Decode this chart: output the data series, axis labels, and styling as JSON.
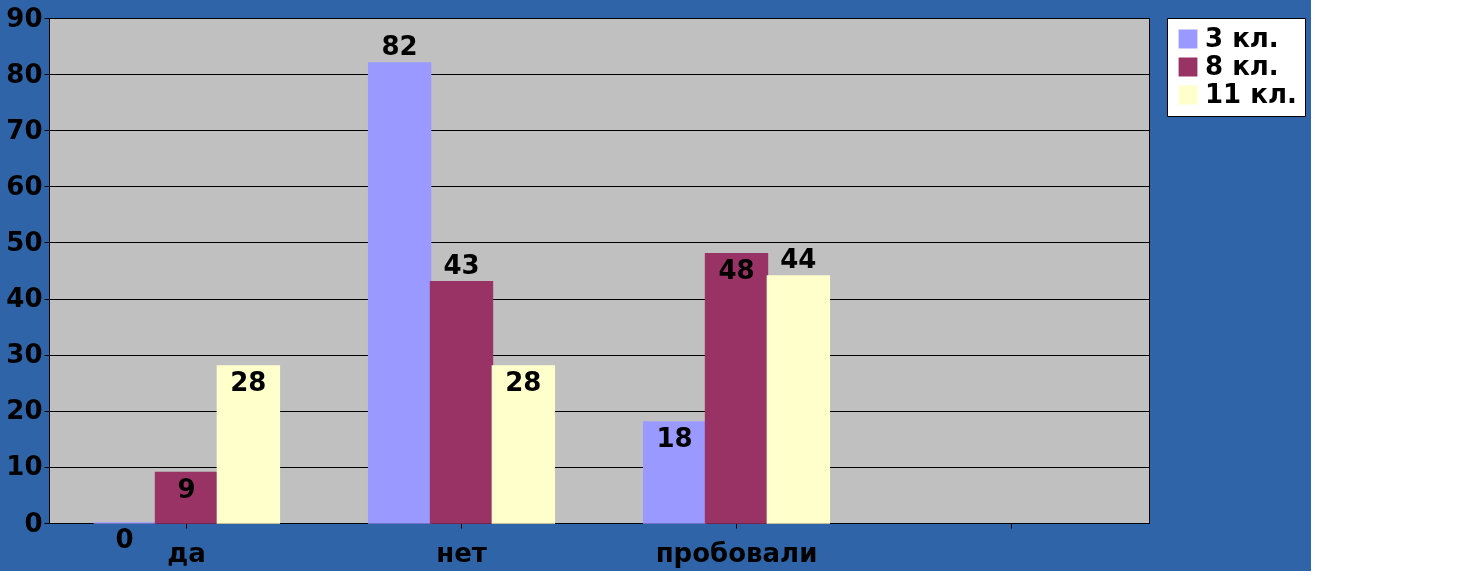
{
  "chart_data": {
    "type": "bar",
    "categories": [
      "да",
      "нет",
      "пробовали",
      null
    ],
    "series": [
      {
        "name": "3 кл.",
        "color": "#9999ff",
        "values": [
          0,
          82,
          18,
          null
        ]
      },
      {
        "name": "8 кл.",
        "color": "#993366",
        "values": [
          9,
          43,
          48,
          null
        ]
      },
      {
        "name": "11 кл.",
        "color": "#ffffcc",
        "values": [
          28,
          28,
          44,
          null
        ]
      }
    ],
    "ylim": [
      0,
      90
    ],
    "yticks": [
      0,
      10,
      20,
      30,
      40,
      50,
      60,
      70,
      80,
      90
    ],
    "grid": "y",
    "legend": "right",
    "data_labels": true
  }
}
